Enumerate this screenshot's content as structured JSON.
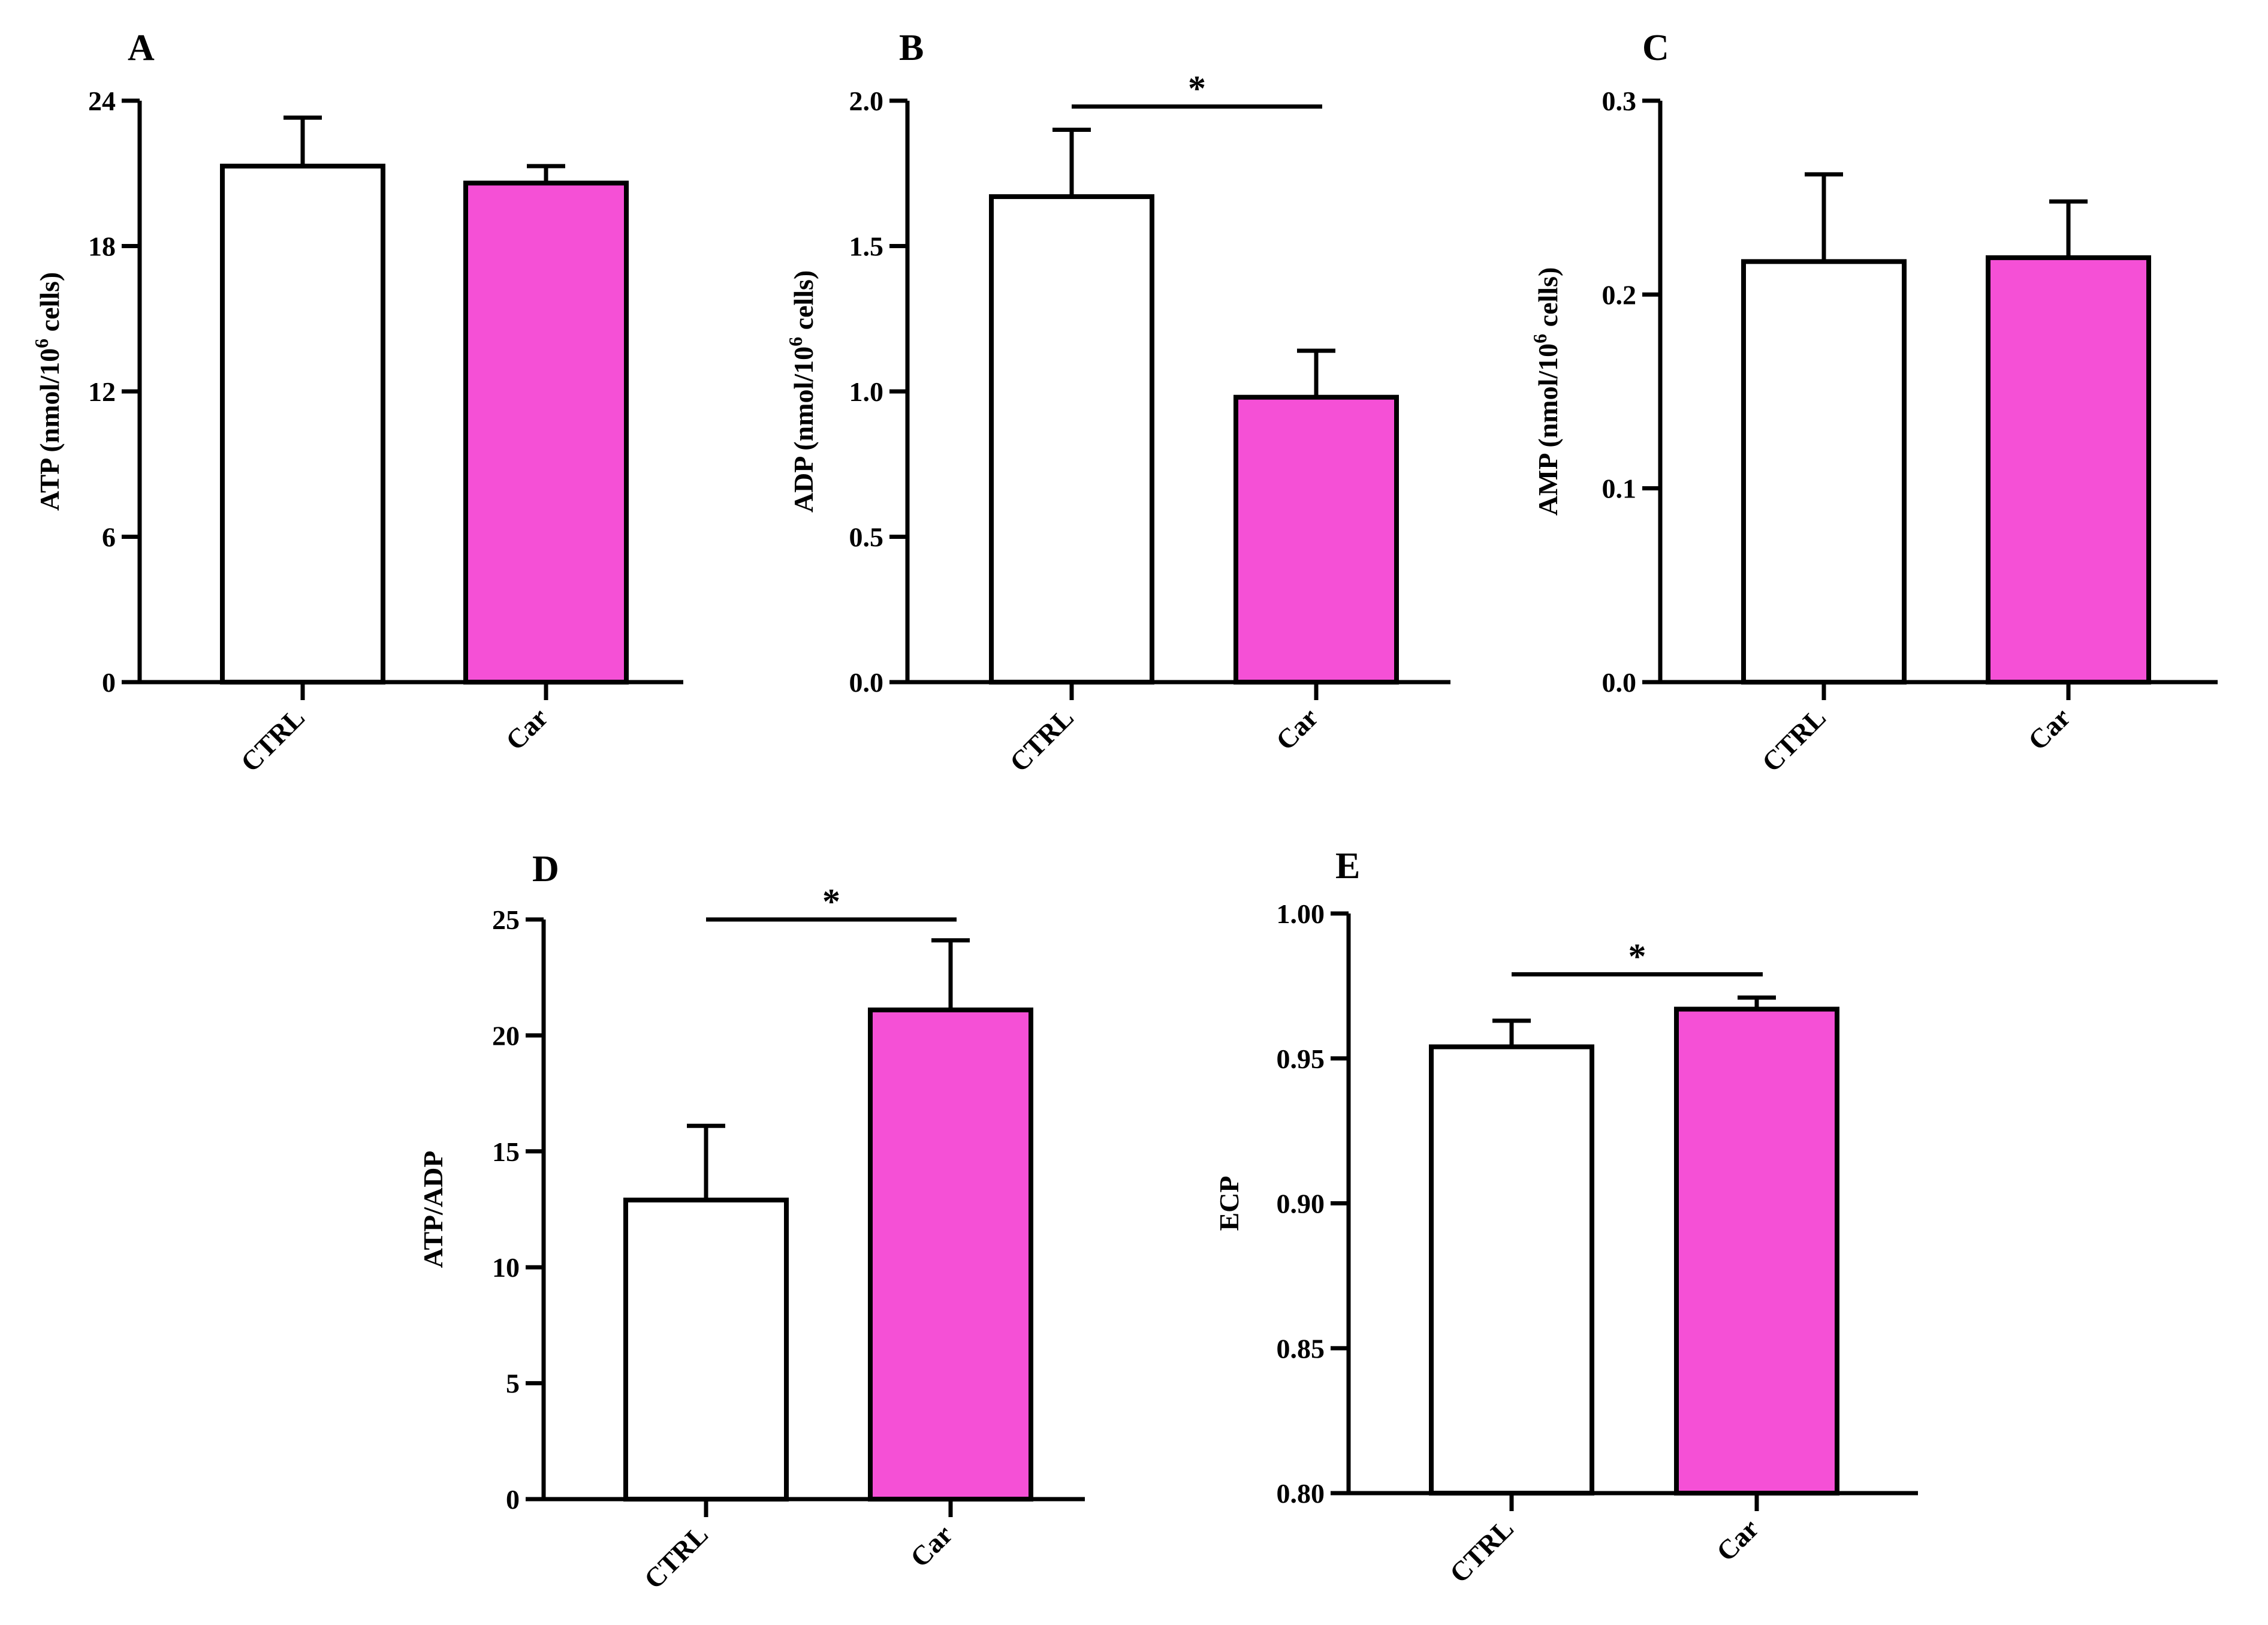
{
  "figure": {
    "colors": {
      "ctrl_fill": "#ffffff",
      "car_fill": "#f550d6",
      "axis": "#000000"
    }
  },
  "chart_data": [
    {
      "id": "A",
      "type": "bar",
      "panel_label": "A",
      "ylabel_html": {
        "prefix": "ATP (nmol/10",
        "sup": "6",
        "suffix": " cells)"
      },
      "categories": [
        "CTRL",
        "Car"
      ],
      "values": [
        21.3,
        20.6
      ],
      "errors": [
        2.0,
        0.7
      ],
      "ylim": [
        0,
        24
      ],
      "yticks": [
        0,
        6,
        12,
        18,
        24
      ],
      "ytick_labels": [
        "0",
        "6",
        "12",
        "18",
        "24"
      ],
      "significance": null
    },
    {
      "id": "B",
      "type": "bar",
      "panel_label": "B",
      "ylabel_html": {
        "prefix": "ADP (nmol/10",
        "sup": "6",
        "suffix": " cells)"
      },
      "categories": [
        "CTRL",
        "Car"
      ],
      "values": [
        1.67,
        0.98
      ],
      "errors": [
        0.23,
        0.16
      ],
      "ylim": [
        0,
        2.0
      ],
      "yticks": [
        0,
        0.5,
        1.0,
        1.5,
        2.0
      ],
      "ytick_labels": [
        "0.0",
        "0.5",
        "1.0",
        "1.5",
        "2.0"
      ],
      "significance": {
        "label": "*",
        "y": 1.98
      }
    },
    {
      "id": "C",
      "type": "bar",
      "panel_label": "C",
      "ylabel_html": {
        "prefix": "AMP (nmol/10",
        "sup": "6",
        "suffix": " cells)"
      },
      "categories": [
        "CTRL",
        "Car"
      ],
      "values": [
        0.217,
        0.219
      ],
      "errors": [
        0.045,
        0.029
      ],
      "ylim": [
        0,
        0.3
      ],
      "yticks": [
        0,
        0.1,
        0.2,
        0.3
      ],
      "ytick_labels": [
        "0.0",
        "0.1",
        "0.2",
        "0.3"
      ],
      "significance": null
    },
    {
      "id": "D",
      "type": "bar",
      "panel_label": "D",
      "ylabel_html": {
        "prefix": "ATP/ADP",
        "sup": "",
        "suffix": ""
      },
      "categories": [
        "CTRL",
        "Car"
      ],
      "values": [
        12.9,
        21.1
      ],
      "errors": [
        3.2,
        3.0
      ],
      "ylim": [
        0,
        25
      ],
      "yticks": [
        0,
        5,
        10,
        15,
        20,
        25
      ],
      "ytick_labels": [
        "0",
        "5",
        "10",
        "15",
        "20",
        "25"
      ],
      "significance": {
        "label": "*",
        "y": 25.0
      }
    },
    {
      "id": "E",
      "type": "bar",
      "panel_label": "E",
      "ylabel_html": {
        "prefix": "ECP",
        "sup": "",
        "suffix": ""
      },
      "categories": [
        "CTRL",
        "Car"
      ],
      "values": [
        0.954,
        0.967
      ],
      "errors": [
        0.009,
        0.004
      ],
      "ylim": [
        0.8,
        1.0
      ],
      "yticks": [
        0.8,
        0.85,
        0.9,
        0.95,
        1.0
      ],
      "ytick_labels": [
        "0.80",
        "0.85",
        "0.90",
        "0.95",
        "1.00"
      ],
      "significance": {
        "label": "*",
        "y": 0.979
      }
    }
  ]
}
